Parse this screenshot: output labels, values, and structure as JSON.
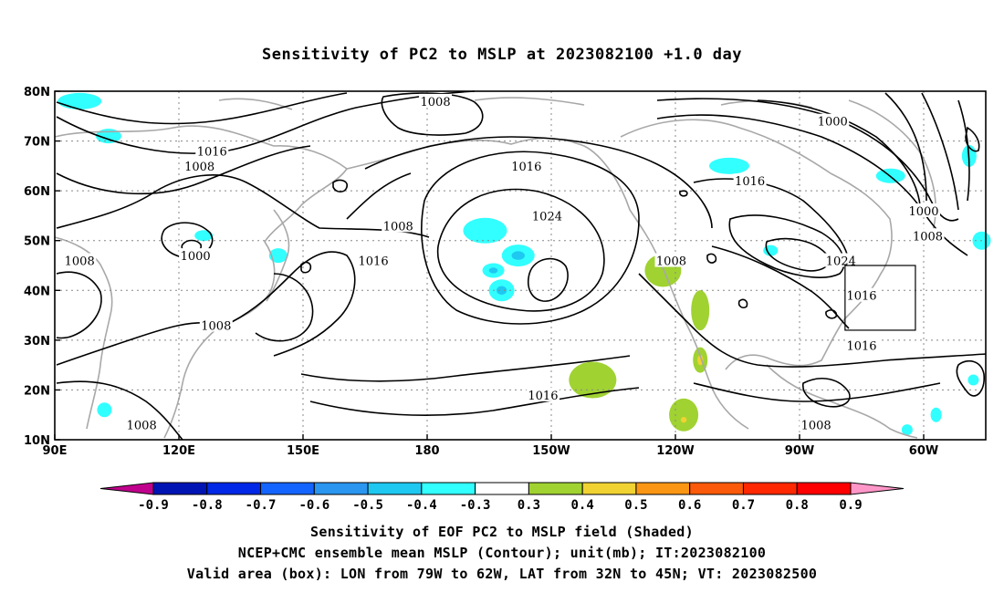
{
  "title": "Sensitivity of PC2 to MSLP at 2023082100 +1.0 day",
  "captions": {
    "line1": "Sensitivity of EOF PC2 to MSLP field (Shaded)",
    "line2": "NCEP+CMC ensemble mean MSLP (Contour); unit(mb); IT:2023082100",
    "line3": "Valid area (box): LON from 79W to 62W, LAT from 32N to 45N; VT: 2023082500"
  },
  "chart_data": {
    "type": "heatmap",
    "title": "Sensitivity of PC2 to MSLP at 2023082100 +1.0 day",
    "xlabel": "",
    "ylabel": "",
    "lon_range": [
      90,
      315
    ],
    "lat_range": [
      10,
      80
    ],
    "grid": true,
    "lon_ticks": [
      {
        "label": "90E",
        "lon": 90
      },
      {
        "label": "120E",
        "lon": 120
      },
      {
        "label": "150E",
        "lon": 150
      },
      {
        "label": "180",
        "lon": 180
      },
      {
        "label": "150W",
        "lon": 210
      },
      {
        "label": "120W",
        "lon": 240
      },
      {
        "label": "90W",
        "lon": 270
      },
      {
        "label": "60W",
        "lon": 300
      }
    ],
    "lat_ticks": [
      {
        "label": "10N",
        "lat": 10
      },
      {
        "label": "20N",
        "lat": 20
      },
      {
        "label": "30N",
        "lat": 30
      },
      {
        "label": "40N",
        "lat": 40
      },
      {
        "label": "50N",
        "lat": 50
      },
      {
        "label": "60N",
        "lat": 60
      },
      {
        "label": "70N",
        "lat": 70
      },
      {
        "label": "80N",
        "lat": 80
      }
    ],
    "colorbar": {
      "levels": [
        -0.9,
        -0.8,
        -0.7,
        -0.6,
        -0.5,
        -0.4,
        -0.3,
        0.3,
        0.4,
        0.5,
        0.6,
        0.7,
        0.8,
        0.9
      ],
      "labels": [
        "-0.9",
        "-0.8",
        "-0.7",
        "-0.6",
        "-0.5",
        "-0.4",
        "-0.3",
        "0.3",
        "0.4",
        "0.5",
        "0.6",
        "0.7",
        "0.8",
        "0.9"
      ],
      "colors": [
        "#c0008c",
        "#0014b4",
        "#0028e6",
        "#1464ff",
        "#2a96f0",
        "#1ec8f0",
        "#32ffff",
        "#ffffff",
        "#a0d232",
        "#f0d232",
        "#fa9614",
        "#fa5a0a",
        "#ff2800",
        "#ff0000",
        "#ff96c8"
      ]
    },
    "valid_box": {
      "lon_min": 281,
      "lon_max": 298,
      "lat_min": 32,
      "lat_max": 45
    },
    "contour_labels": [
      {
        "text": "1008",
        "lon": 182,
        "lat": 78
      },
      {
        "text": "1000",
        "lon": 278,
        "lat": 74
      },
      {
        "text": "1016",
        "lon": 128,
        "lat": 68
      },
      {
        "text": "1008",
        "lon": 125,
        "lat": 65
      },
      {
        "text": "1016",
        "lon": 204,
        "lat": 65
      },
      {
        "text": "1016",
        "lon": 258,
        "lat": 62
      },
      {
        "text": "1024",
        "lon": 209,
        "lat": 55
      },
      {
        "text": "1000",
        "lon": 300,
        "lat": 56
      },
      {
        "text": "1008",
        "lon": 173,
        "lat": 53
      },
      {
        "text": "1008",
        "lon": 301,
        "lat": 51
      },
      {
        "text": "1000",
        "lon": 124,
        "lat": 47
      },
      {
        "text": "1008",
        "lon": 96,
        "lat": 46
      },
      {
        "text": "1016",
        "lon": 167,
        "lat": 46
      },
      {
        "text": "1008",
        "lon": 239,
        "lat": 46
      },
      {
        "text": "1024",
        "lon": 280,
        "lat": 46
      },
      {
        "text": "1016",
        "lon": 285,
        "lat": 39
      },
      {
        "text": "1008",
        "lon": 129,
        "lat": 33
      },
      {
        "text": "1016",
        "lon": 285,
        "lat": 29
      },
      {
        "text": "1016",
        "lon": 208,
        "lat": 19
      },
      {
        "text": "1008",
        "lon": 111,
        "lat": 13
      },
      {
        "text": "1008",
        "lon": 274,
        "lat": 13
      }
    ],
    "shaded_regions": [
      {
        "sign": "negative",
        "value": -0.4,
        "lon": 96,
        "lat": 78
      },
      {
        "sign": "negative",
        "value": -0.4,
        "lon": 103,
        "lat": 71
      },
      {
        "sign": "negative",
        "value": -0.4,
        "lon": 194,
        "lat": 52
      },
      {
        "sign": "negative",
        "value": -0.5,
        "lon": 202,
        "lat": 47
      },
      {
        "sign": "negative",
        "value": -0.5,
        "lon": 196,
        "lat": 44
      },
      {
        "sign": "negative",
        "value": -0.5,
        "lon": 198,
        "lat": 40
      },
      {
        "sign": "negative",
        "value": -0.4,
        "lon": 253,
        "lat": 65
      },
      {
        "sign": "negative",
        "value": -0.4,
        "lon": 292,
        "lat": 63
      },
      {
        "sign": "negative",
        "value": -0.4,
        "lon": 314,
        "lat": 50
      },
      {
        "sign": "negative",
        "value": -0.4,
        "lon": 311,
        "lat": 67
      },
      {
        "sign": "negative",
        "value": -0.4,
        "lon": 303,
        "lat": 15
      },
      {
        "sign": "negative",
        "value": -0.4,
        "lon": 296,
        "lat": 12
      },
      {
        "sign": "negative",
        "value": -0.4,
        "lon": 312,
        "lat": 22
      },
      {
        "sign": "negative",
        "value": -0.4,
        "lon": 102,
        "lat": 16
      },
      {
        "sign": "negative",
        "value": -0.4,
        "lon": 126,
        "lat": 51
      },
      {
        "sign": "negative",
        "value": -0.4,
        "lon": 144,
        "lat": 47
      },
      {
        "sign": "negative",
        "value": -0.4,
        "lon": 263,
        "lat": 48
      },
      {
        "sign": "positive",
        "value": 0.4,
        "lon": 237,
        "lat": 44
      },
      {
        "sign": "positive",
        "value": 0.5,
        "lon": 240,
        "lat": 46
      },
      {
        "sign": "positive",
        "value": 0.4,
        "lon": 246,
        "lat": 36
      },
      {
        "sign": "positive",
        "value": 0.5,
        "lon": 246,
        "lat": 26
      },
      {
        "sign": "positive",
        "value": 0.4,
        "lon": 220,
        "lat": 22
      },
      {
        "sign": "positive",
        "value": 0.4,
        "lon": 242,
        "lat": 15
      },
      {
        "sign": "positive",
        "value": 0.5,
        "lon": 242,
        "lat": 14
      }
    ]
  }
}
